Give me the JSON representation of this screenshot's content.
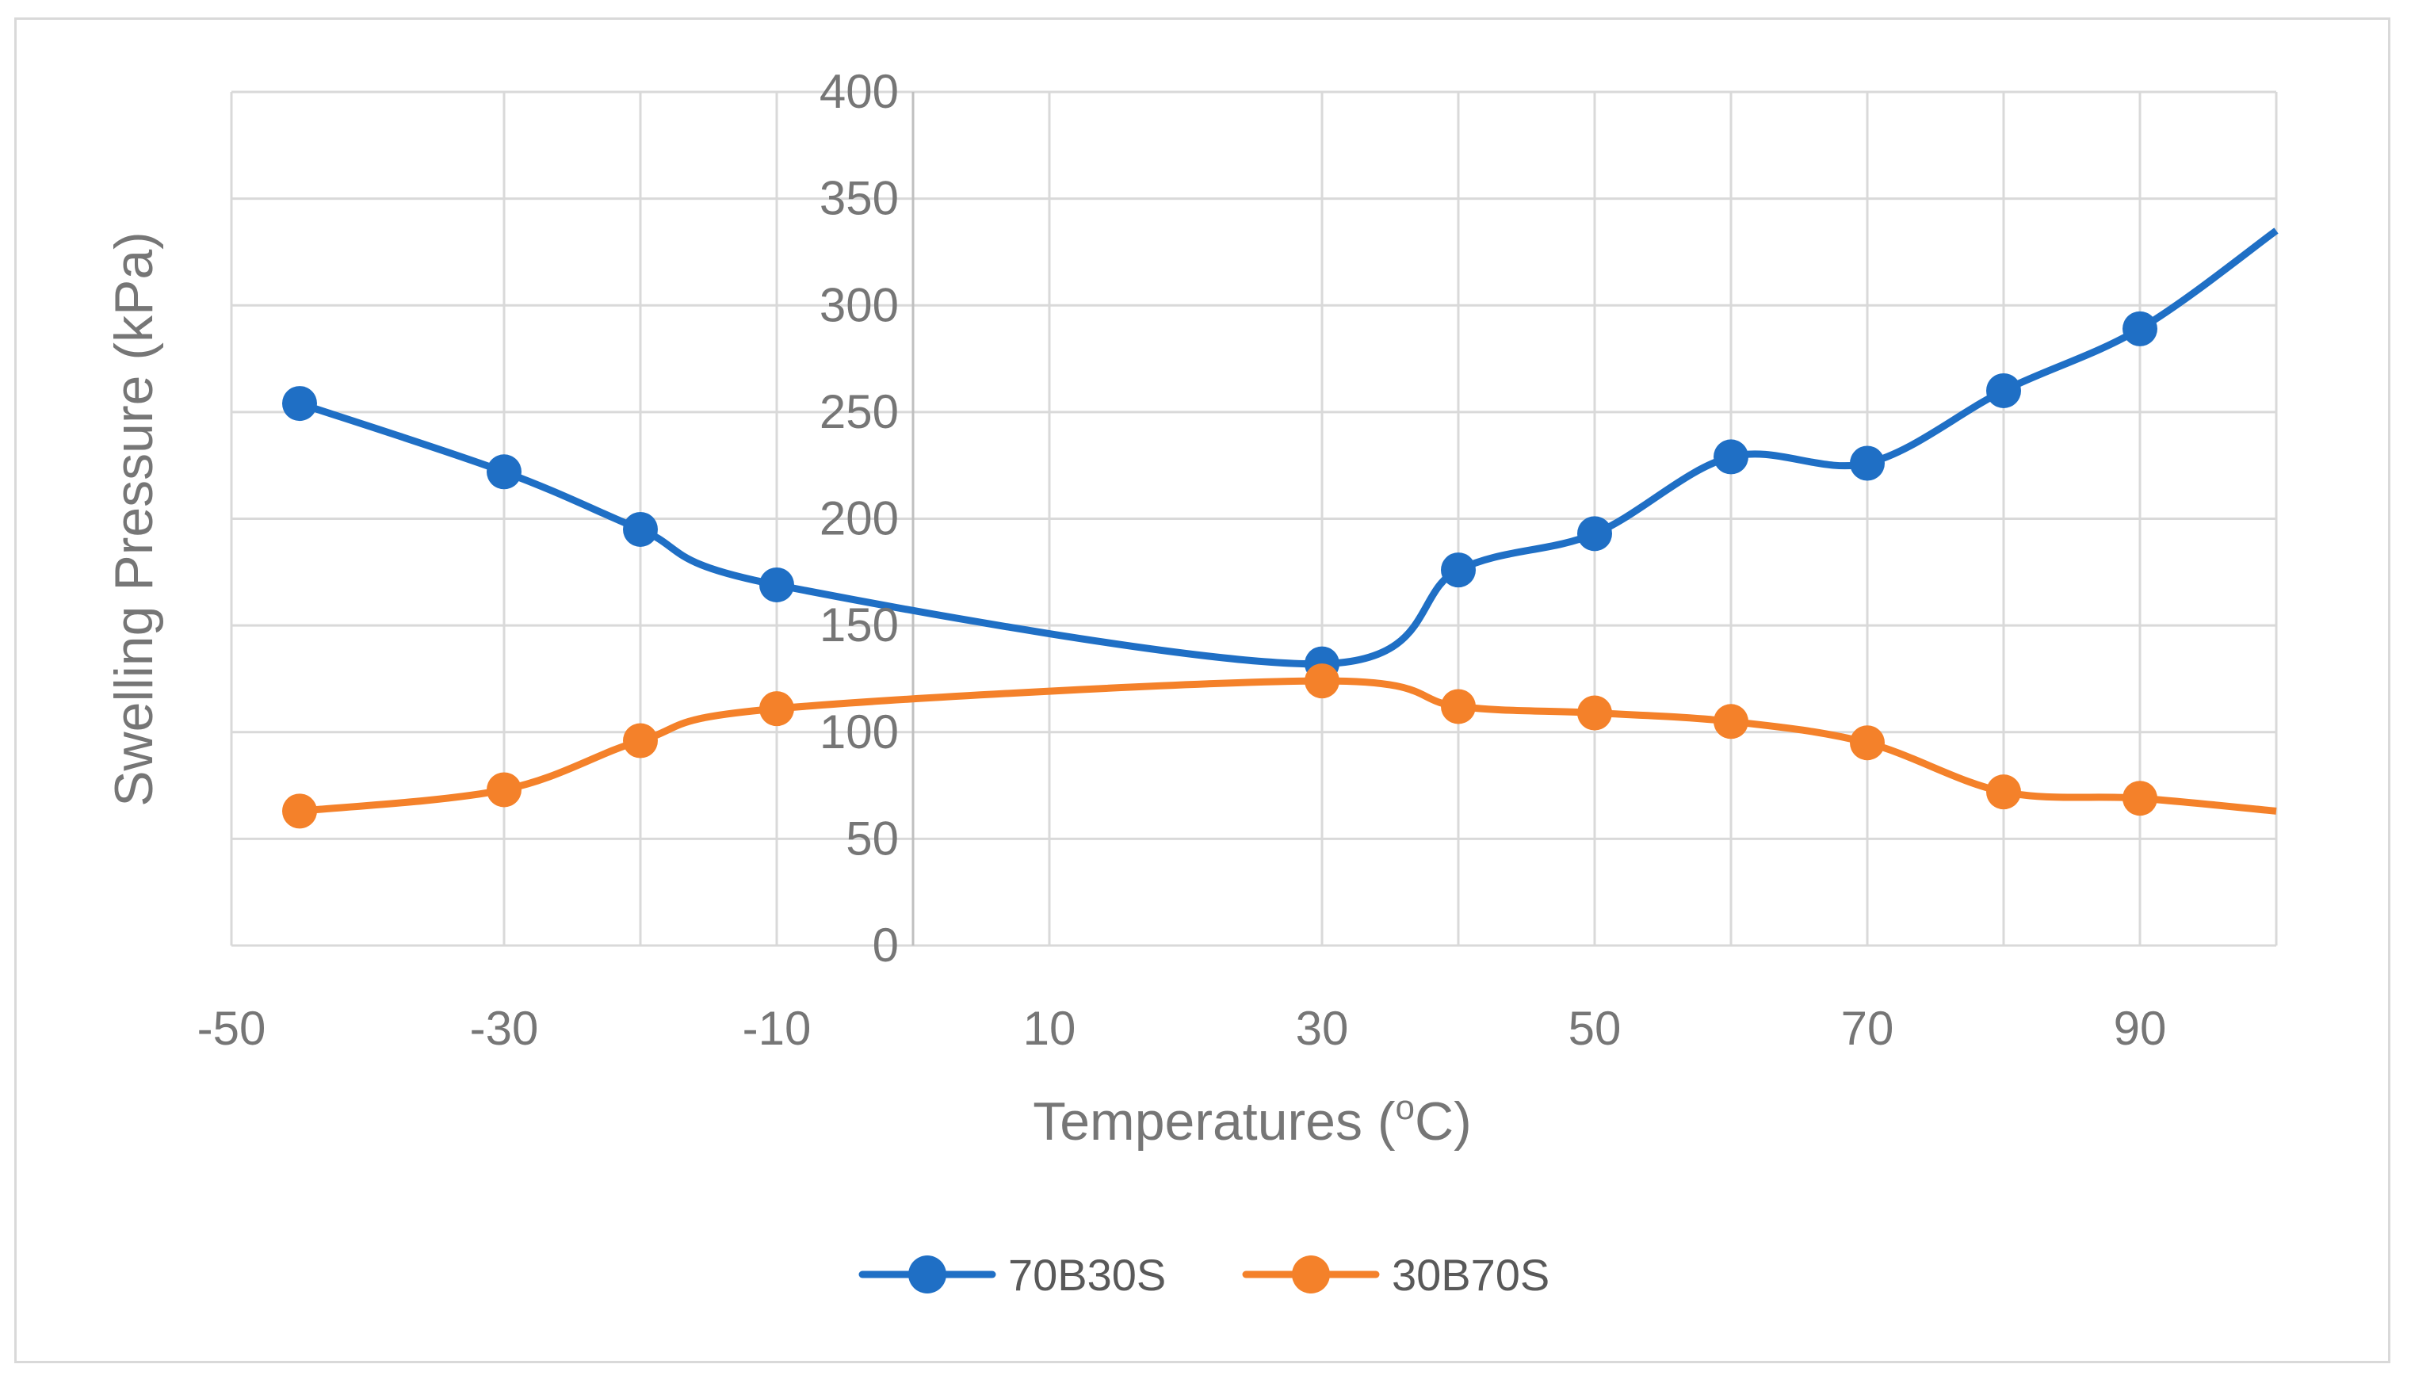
{
  "chart_data": {
    "type": "line",
    "smooth": true,
    "xlabel_prefix": "Temperatures (",
    "xlabel_superscript": "o",
    "xlabel_suffix": "C)",
    "ylabel": "Swelling Pressure (kPa)",
    "xlim": [
      -50,
      100
    ],
    "ylim": [
      0,
      400
    ],
    "x_ticks": [
      -50,
      -30,
      -10,
      10,
      30,
      50,
      70,
      90
    ],
    "y_ticks": [
      0,
      50,
      100,
      150,
      200,
      250,
      300,
      350,
      400
    ],
    "x_gridlines": [
      -50,
      -30,
      -20,
      -10,
      0,
      10,
      30,
      40,
      50,
      60,
      70,
      80,
      90,
      100
    ],
    "grid": true,
    "legend_position": "bottom",
    "series": [
      {
        "name": "70B30S",
        "color": "#1f6fc5",
        "x": [
          -45,
          -30,
          -20,
          -10,
          30,
          40,
          50,
          60,
          70,
          80,
          90
        ],
        "values": [
          254,
          222,
          195,
          169,
          132,
          176,
          193,
          229,
          226,
          260,
          289
        ],
        "trend_end": {
          "x": 100,
          "value": 335
        }
      },
      {
        "name": "30B70S",
        "color": "#f4812a",
        "x": [
          -45,
          -30,
          -20,
          -10,
          30,
          40,
          50,
          60,
          70,
          80,
          90
        ],
        "values": [
          63,
          73,
          96,
          111,
          124,
          112,
          109,
          105,
          95,
          72,
          69
        ],
        "trend_end": {
          "x": 100,
          "value": 63
        }
      }
    ]
  }
}
